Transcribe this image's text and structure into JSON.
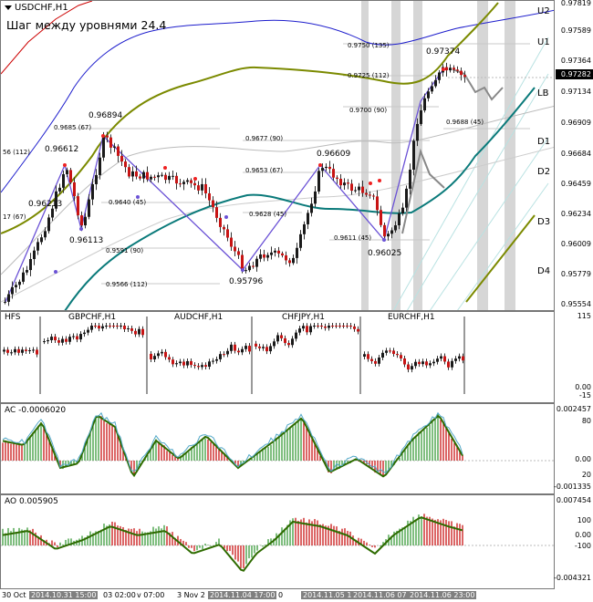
{
  "header": {
    "symbol": "USDCHF,H1",
    "step_text": "Шаг между уровнями 24.4"
  },
  "price_scale": [
    "0.97819",
    "0.97589",
    "0.97364",
    "0.97134",
    "0.96909",
    "0.96684",
    "0.96459",
    "0.96234",
    "0.96009",
    "0.95779",
    "0.95554"
  ],
  "current_price": "0.97282",
  "levels": [
    "U2",
    "U1",
    "LB",
    "D1",
    "D2",
    "D3",
    "D4"
  ],
  "peaks": [
    "0.96894",
    "0.96612",
    "0.96213",
    "0.96113",
    "0.95796",
    "0.96609",
    "0.96025",
    "0.97374"
  ],
  "fib_labels": [
    "0.9750 (135)",
    "0.9725 (112)",
    "0.9700 (90)",
    "0.9688 (45)",
    "0.9685 (67)",
    "0.9677 (90)",
    "0.9653 (67)",
    "0.9640 (45)",
    "0.9628 (45)",
    "0.9611 (45)",
    "0.9591 (90)",
    "0.9566 (112)",
    "56 (112)",
    "17 (67)"
  ],
  "sub1": {
    "labels": [
      "HFS",
      "GBPCHF,H1",
      "AUDCHF,H1",
      "CHFJPY,H1",
      "EURCHF,H1"
    ],
    "scale": [
      "115",
      "0.00",
      "-15"
    ]
  },
  "sub2": {
    "title": "AC -0.0006020",
    "scale": [
      "0.002457",
      "80",
      "0.00",
      "20",
      "-0.001335"
    ]
  },
  "sub3": {
    "title": "AO 0.005905",
    "scale": [
      "0.007454",
      "100",
      "0.00",
      "-100",
      "-0.004321"
    ]
  },
  "time_axis": [
    "30 Oct",
    "2014.10.31 15:00",
    "03 02:00",
    "v 07:00",
    "3 Nov 2",
    "2014.11.04 17:00",
    "0",
    "2014.11.05 1",
    "2014.11.06 07",
    "2014.11.06 23:00"
  ]
}
